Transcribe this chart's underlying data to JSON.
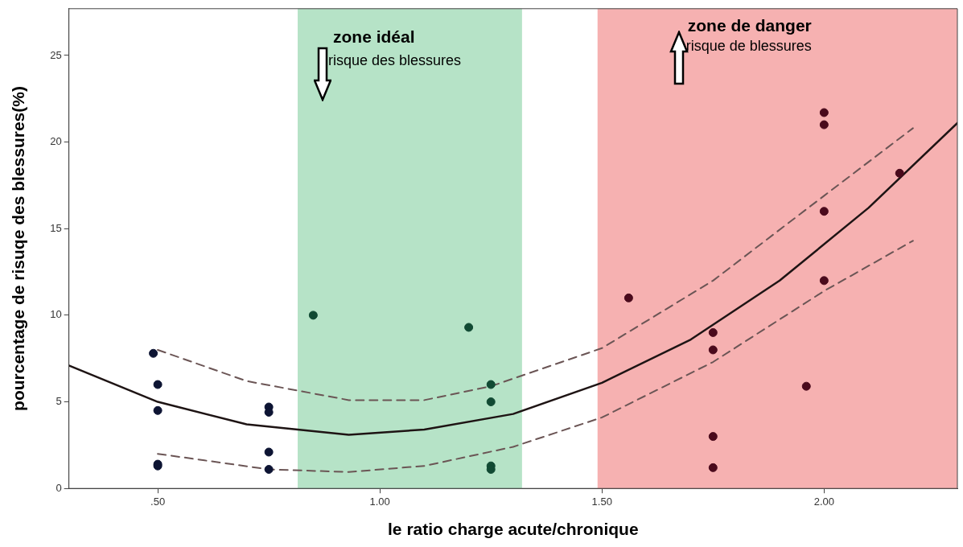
{
  "chart_data": {
    "type": "scatter",
    "xlabel": "le ratio charge acute/chronique",
    "ylabel": "pourcentage de risuqe des blessures(%)",
    "xlim": [
      0.3,
      2.3
    ],
    "ylim": [
      0,
      27.7
    ],
    "xticks": [
      {
        "value": 0.5,
        "label": ".50"
      },
      {
        "value": 1,
        "label": "1.00"
      },
      {
        "value": 1.5,
        "label": "1.50"
      },
      {
        "value": 2,
        "label": "2.00"
      }
    ],
    "yticks": [
      0,
      5,
      10,
      15,
      20,
      25
    ],
    "grid": false,
    "legend": false,
    "bands": [
      {
        "axis": "x",
        "from": 0.815,
        "to": 1.32,
        "label": "zone idéal",
        "color": "#b6e3c7"
      },
      {
        "axis": "x",
        "from": 1.49,
        "to": 2.3,
        "label": "zone de danger",
        "color": "#f6b1b1"
      }
    ],
    "annotations": [
      "risque des blessures",
      "risque de blessures"
    ],
    "series": [
      {
        "type": "scatter",
        "marker": "circle",
        "x": [
          0.49,
          0.5,
          0.5,
          0.5,
          0.5,
          0.75,
          0.75,
          0.75,
          0.75,
          0.85,
          1.2,
          1.25,
          1.25,
          1.25,
          1.25,
          1.56,
          1.75,
          1.75,
          1.75,
          1.75,
          1.96,
          2.0,
          2.0,
          2.0,
          2.0,
          2.17
        ],
        "values": [
          7.8,
          6.0,
          4.5,
          1.4,
          1.3,
          4.7,
          4.4,
          2.1,
          1.1,
          10.0,
          9.3,
          6.0,
          5.0,
          1.3,
          1.1,
          11.0,
          9.0,
          8.0,
          3.0,
          1.2,
          5.9,
          21.7,
          21.0,
          16.0,
          12.0,
          18.2
        ],
        "colors": [
          "#0d1433",
          "#0d1433",
          "#0d1433",
          "#0d1433",
          "#0d1433",
          "#0d1433",
          "#0d1433",
          "#0d1433",
          "#0d1433",
          "#114a33",
          "#114a33",
          "#114a33",
          "#114a33",
          "#114a33",
          "#114a33",
          "#4a0a1c",
          "#4a0a1c",
          "#4a0a1c",
          "#4a0a1c",
          "#4a0a1c",
          "#4a0a1c",
          "#4a0a1c",
          "#4a0a1c",
          "#4a0a1c",
          "#4a0a1c",
          "#4a0a1c"
        ]
      },
      {
        "type": "line",
        "x": [
          0.3,
          0.5,
          0.7,
          0.93,
          1.1,
          1.3,
          1.5,
          1.7,
          1.9,
          2.1,
          2.3
        ],
        "values": [
          7.1,
          5.0,
          3.7,
          3.1,
          3.4,
          4.3,
          6.1,
          8.6,
          12.0,
          16.2,
          21.1
        ],
        "color": "#1e1414",
        "line_style": "solid"
      },
      {
        "type": "line",
        "x": [
          0.5,
          0.7,
          0.93,
          1.1,
          1.25,
          1.5,
          1.75,
          2.0,
          2.2
        ],
        "values": [
          8.0,
          6.2,
          5.1,
          5.1,
          5.9,
          8.1,
          12.0,
          16.9,
          20.8
        ],
        "color": "#6b5555",
        "line_style": "dashed"
      },
      {
        "type": "line",
        "x": [
          0.5,
          0.75,
          0.93,
          1.1,
          1.3,
          1.5,
          1.75,
          2.0,
          2.2
        ],
        "values": [
          2.0,
          1.1,
          0.95,
          1.3,
          2.4,
          4.1,
          7.3,
          11.4,
          14.3
        ],
        "color": "#6b5555",
        "line_style": "dashed"
      }
    ]
  }
}
